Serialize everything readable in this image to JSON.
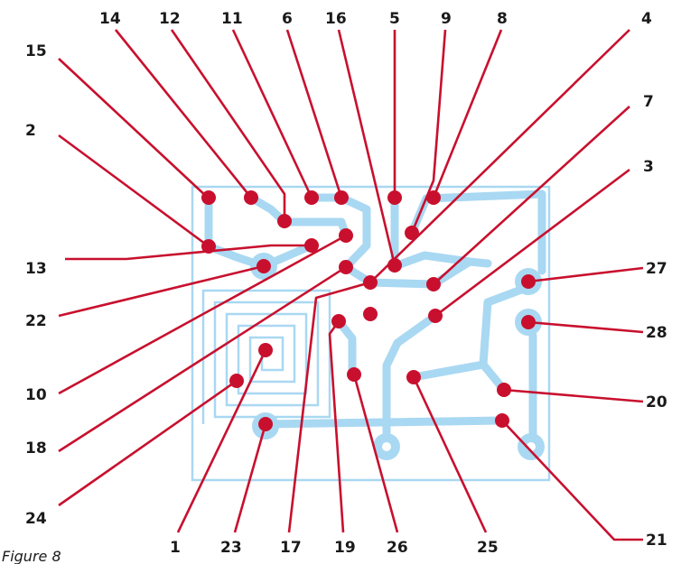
{
  "caption": "Figure 8",
  "colors": {
    "track": "#a9d8f2",
    "leader": "#c8102e",
    "text": "#1a1a1a"
  },
  "labels": {
    "l15": "15",
    "l14": "14",
    "l12": "12",
    "l11": "11",
    "l6": "6",
    "l16": "16",
    "l5": "5",
    "l9": "9",
    "l8": "8",
    "l4": "4",
    "l7": "7",
    "l3": "3",
    "l2": "2",
    "l13": "13",
    "l22": "22",
    "l10": "10",
    "l18": "18",
    "l24": "24",
    "l27": "27",
    "l28": "28",
    "l20": "20",
    "l21": "21",
    "l1": "1",
    "l23": "23",
    "l17": "17",
    "l19": "19",
    "l26": "26",
    "l25": "25"
  }
}
